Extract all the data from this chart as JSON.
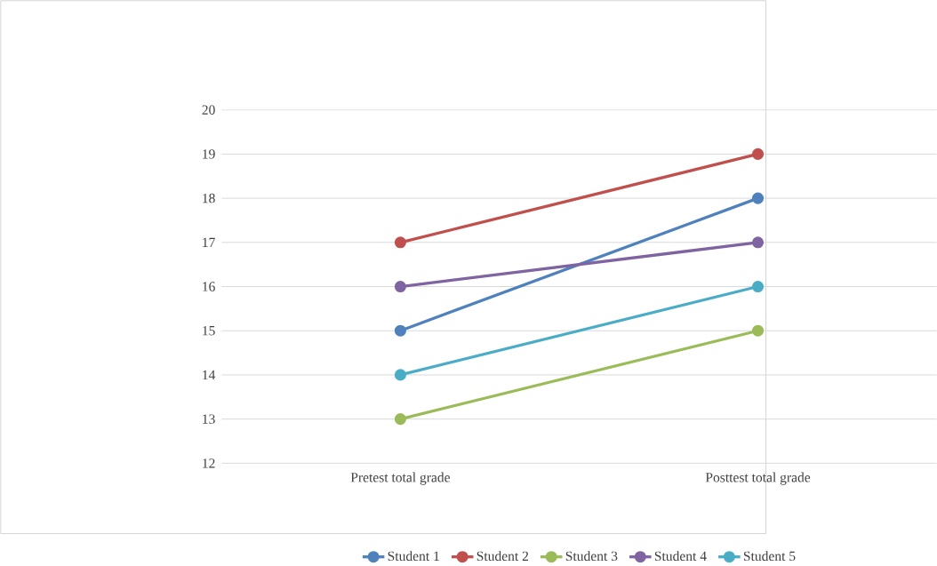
{
  "chart_data": {
    "type": "line",
    "categories": [
      "Pretest total grade",
      "Posttest total grade"
    ],
    "series": [
      {
        "name": "Student 1",
        "color": "#4f81bd",
        "values": [
          15,
          18
        ]
      },
      {
        "name": "Student 2",
        "color": "#c0504d",
        "values": [
          17,
          19
        ]
      },
      {
        "name": "Student 3",
        "color": "#9bbb59",
        "values": [
          13,
          15
        ]
      },
      {
        "name": "Student 4",
        "color": "#8064a2",
        "values": [
          16,
          17
        ]
      },
      {
        "name": "Student 5",
        "color": "#4bacc6",
        "values": [
          14,
          16
        ]
      }
    ],
    "ylim": [
      12,
      20
    ],
    "yticks": [
      12,
      13,
      14,
      15,
      16,
      17,
      18,
      19,
      20
    ],
    "grid": "y",
    "legend": "bottom",
    "marker": "circle",
    "line_style": "solid"
  }
}
